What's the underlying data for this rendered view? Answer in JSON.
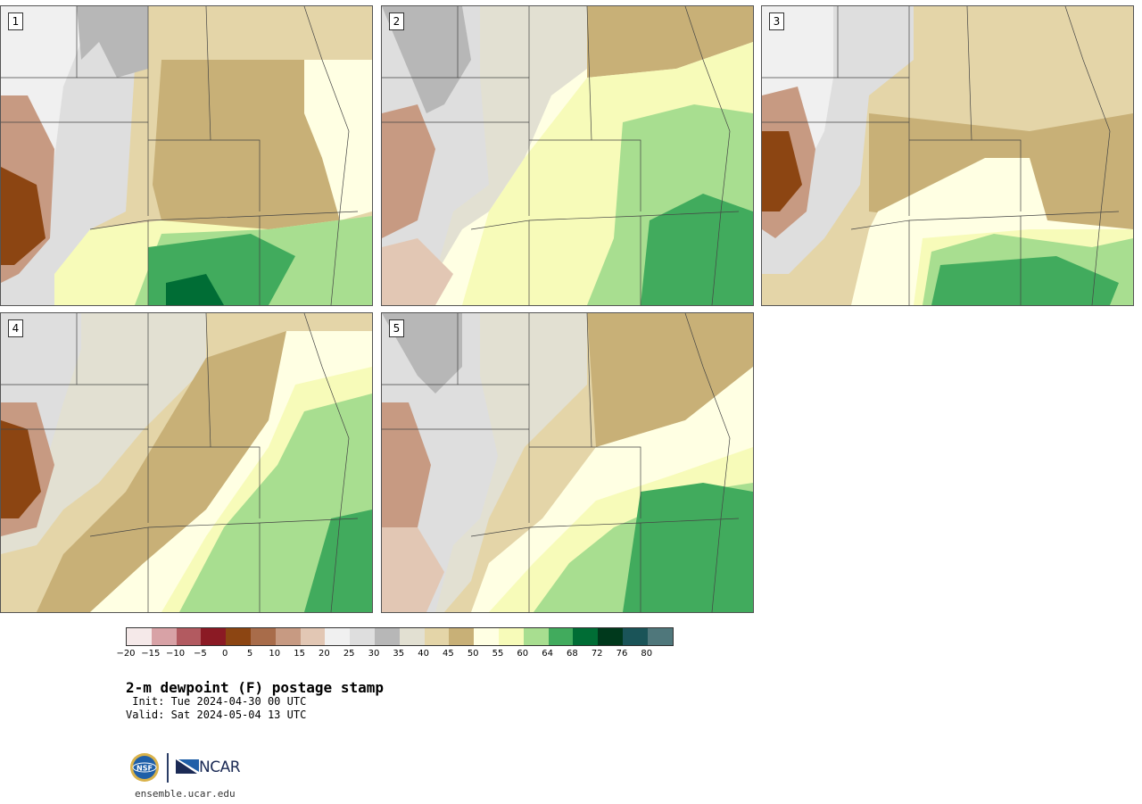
{
  "panels": [
    {
      "label": "1",
      "variant": 1
    },
    {
      "label": "2",
      "variant": 2
    },
    {
      "label": "3",
      "variant": 3
    },
    {
      "label": "4",
      "variant": 4
    },
    {
      "label": "5",
      "variant": 5
    }
  ],
  "colorbar": {
    "colors": [
      "#f5e9e9",
      "#d8a2a6",
      "#b25a60",
      "#8b1a24",
      "#8c4512",
      "#a86c4a",
      "#c79a82",
      "#e2c7b4",
      "#f0f0f0",
      "#dedede",
      "#b7b7b7",
      "#e2e0d2",
      "#e4d5a8",
      "#c8b077",
      "#ffffe3",
      "#f7fbb9",
      "#a8de90",
      "#41ab5d",
      "#006d35",
      "#00391c",
      "#1a5458",
      "#4f777b"
    ],
    "ticks": [
      "−20",
      "−15",
      "−10",
      "−5",
      "0",
      "5",
      "10",
      "15",
      "20",
      "25",
      "30",
      "35",
      "40",
      "45",
      "50",
      "55",
      "60",
      "64",
      "68",
      "72",
      "76",
      "80"
    ]
  },
  "title": "2-m dewpoint (F) postage stamp",
  "init": " Init: Tue 2024-04-30 00 UTC",
  "valid": "Valid: Sat 2024-05-04 13 UTC",
  "logo": {
    "org": "NCAR",
    "nsf": "NSF",
    "site": "ensemble.ucar.edu"
  }
}
